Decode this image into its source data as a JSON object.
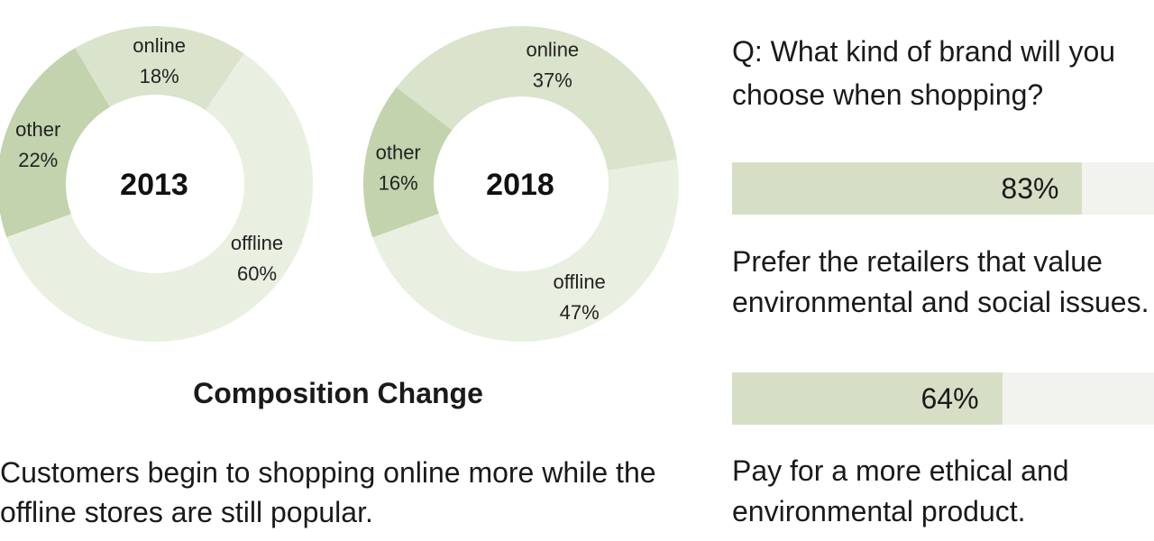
{
  "chart_data": [
    {
      "type": "pie",
      "title": "2013",
      "slices": [
        {
          "label": "online",
          "value": 18,
          "display": "18%",
          "color": "#dae3cc"
        },
        {
          "label": "offline",
          "value": 60,
          "display": "60%",
          "color": "#e9efe1"
        },
        {
          "label": "other",
          "value": 22,
          "display": "22%",
          "color": "#c2d3ad"
        }
      ]
    },
    {
      "type": "pie",
      "title": "2018",
      "slices": [
        {
          "label": "online",
          "value": 37,
          "display": "37%",
          "color": "#dae3cc"
        },
        {
          "label": "offline",
          "value": 47,
          "display": "47%",
          "color": "#e9efe1"
        },
        {
          "label": "other",
          "value": 16,
          "display": "16%",
          "color": "#c2d3ad"
        }
      ]
    },
    {
      "type": "bar",
      "orientation": "horizontal",
      "categories": [
        "Prefer the retailers that value environmental and social issues.",
        "Pay for a more ethical and environmental product."
      ],
      "values": [
        83,
        64
      ],
      "display": [
        "83%",
        "64%"
      ],
      "xlim": [
        0,
        100
      ],
      "fill_color": "#d6dfc6",
      "track_color": "#f2f2ee"
    }
  ],
  "composition_title": "Composition Change",
  "left_caption": "Customers begin to shopping online more while the offline stores are still popular.",
  "question": "Q: What kind of brand will you choose when shopping?"
}
